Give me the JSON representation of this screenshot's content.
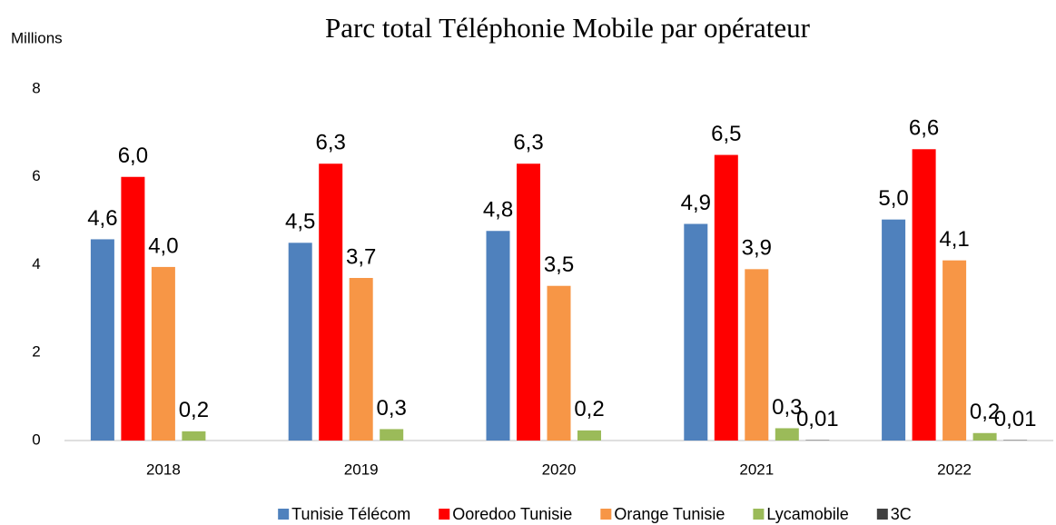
{
  "chart_data": {
    "type": "bar",
    "title": "Parc total Téléphonie Mobile par opérateur",
    "y_label": "Millions",
    "categories": [
      "2018",
      "2019",
      "2020",
      "2021",
      "2022"
    ],
    "series": [
      {
        "name": "Tunisie Télécom",
        "color": "#4f81bd",
        "values": [
          4.58,
          4.5,
          4.77,
          4.93,
          5.03
        ],
        "value_labels": [
          "4,6",
          "4,5",
          "4,8",
          "4,9",
          "5,0"
        ]
      },
      {
        "name": "Ooredoo Tunisie",
        "color": "#ff0000",
        "values": [
          6.0,
          6.3,
          6.3,
          6.5,
          6.63
        ],
        "value_labels": [
          "6,0",
          "6,3",
          "6,3",
          "6,5",
          "6,6"
        ]
      },
      {
        "name": "Orange Tunisie",
        "color": "#f79646",
        "values": [
          3.95,
          3.7,
          3.52,
          3.9,
          4.1
        ],
        "value_labels": [
          "4,0",
          "3,7",
          "3,5",
          "3,9",
          "4,1"
        ]
      },
      {
        "name": "Lycamobile",
        "color": "#9bbb59",
        "values": [
          0.21,
          0.26,
          0.23,
          0.28,
          0.17
        ],
        "value_labels": [
          "0,2",
          "0,3",
          "0,2",
          "0,3",
          "0,2"
        ]
      },
      {
        "name": "3C",
        "color": "#404040",
        "values": [
          null,
          null,
          null,
          0.01,
          0.01
        ],
        "value_labels": [
          null,
          null,
          null,
          "0,01",
          "0,01"
        ]
      }
    ],
    "ylim": [
      0,
      8
    ],
    "yticks": [
      0,
      2,
      4,
      6,
      8
    ],
    "grid": false,
    "legend": "bottom"
  }
}
